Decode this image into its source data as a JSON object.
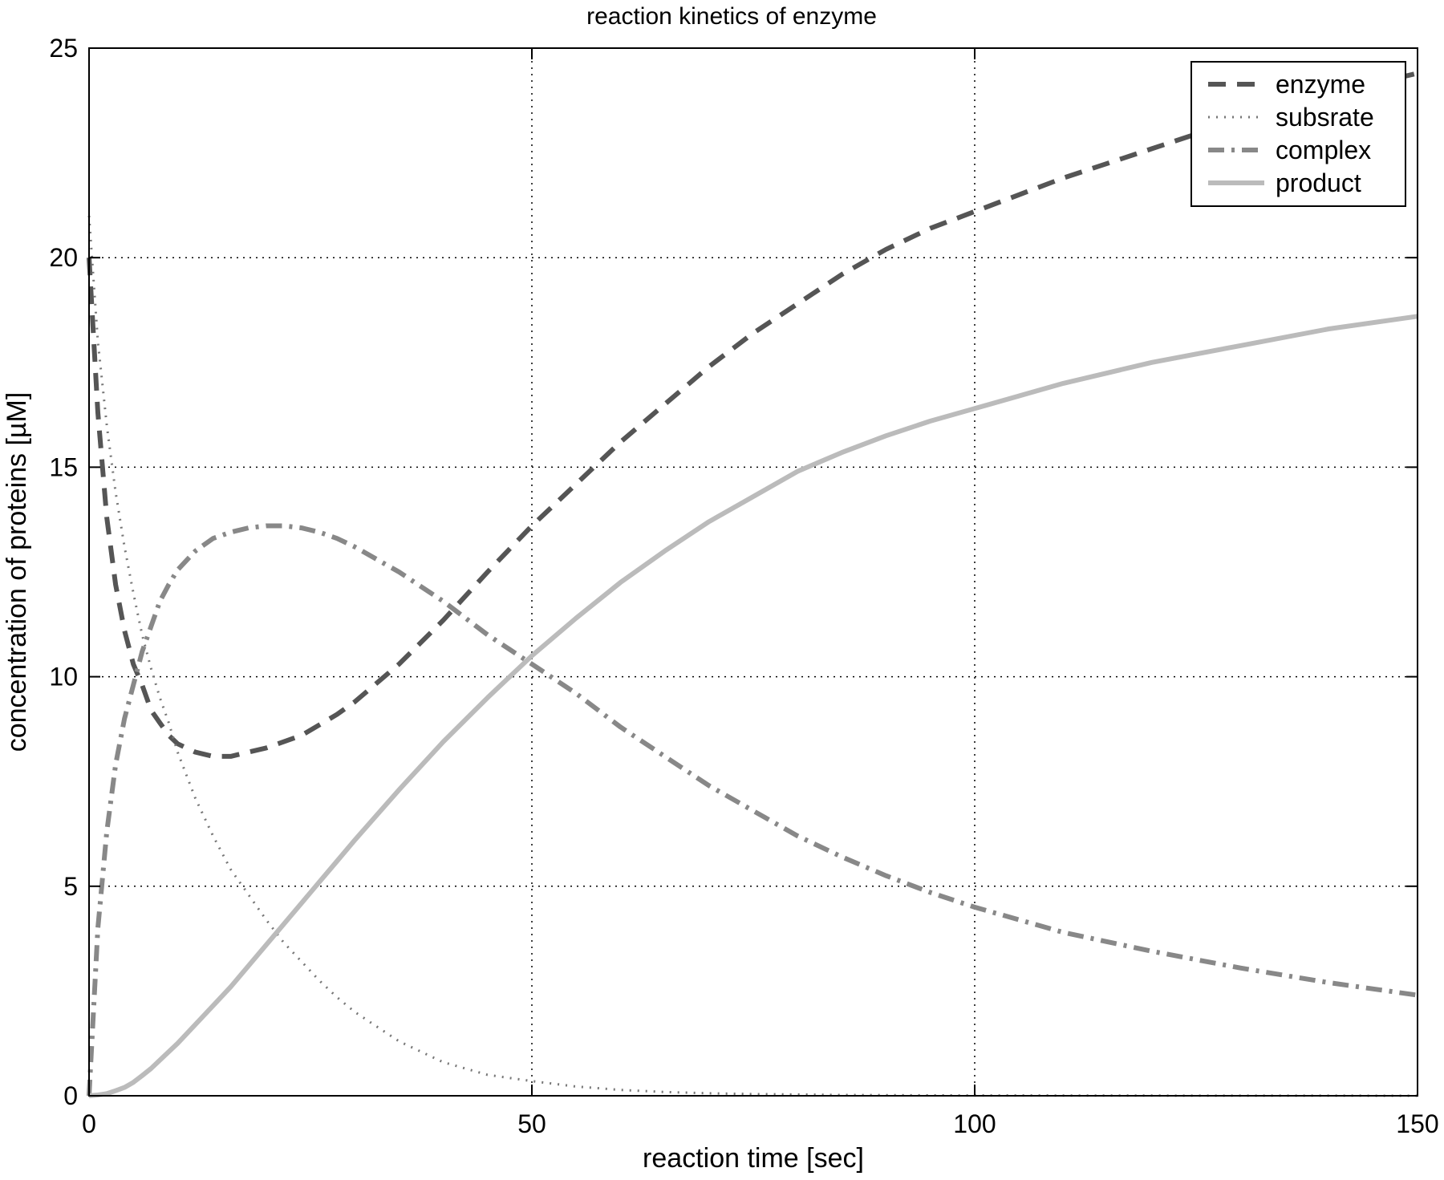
{
  "chart_data": {
    "type": "line",
    "title": "reaction kinetics of enzyme",
    "xlabel": "reaction time [sec]",
    "ylabel": "concentration of proteins [µM]",
    "xlim": [
      0,
      150
    ],
    "ylim": [
      0,
      25
    ],
    "xticks": [
      0,
      50,
      100,
      150
    ],
    "yticks": [
      0,
      5,
      10,
      15,
      20,
      25
    ],
    "xtick_labels": [
      "0",
      "50",
      "100",
      "150"
    ],
    "ytick_labels": [
      "0",
      "5",
      "10",
      "15",
      "20",
      "25"
    ],
    "grid": true,
    "legend_position": "top-right",
    "x": [
      0,
      1,
      2,
      3,
      4,
      5,
      6,
      7,
      8,
      9,
      10,
      12,
      14,
      16,
      18,
      20,
      22,
      24,
      26,
      28,
      30,
      35,
      40,
      45,
      50,
      55,
      60,
      65,
      70,
      75,
      80,
      85,
      90,
      95,
      100,
      110,
      120,
      130,
      140,
      150
    ],
    "series": [
      {
        "name": "enzyme",
        "style": "dashed",
        "color": "#555555",
        "values": [
          20.0,
          16.3,
          13.8,
          12.2,
          11.1,
          10.3,
          9.8,
          9.2,
          8.9,
          8.6,
          8.4,
          8.2,
          8.1,
          8.1,
          8.2,
          8.3,
          8.45,
          8.6,
          8.85,
          9.1,
          9.4,
          10.3,
          11.35,
          12.5,
          13.6,
          14.6,
          15.6,
          16.5,
          17.4,
          18.2,
          18.9,
          19.6,
          20.2,
          20.7,
          21.1,
          21.9,
          22.6,
          23.3,
          23.9,
          24.4
        ]
      },
      {
        "name": "subsrate",
        "style": "dotted",
        "color": "#777777",
        "values": [
          21.0,
          18.0,
          16.0,
          14.4,
          13.1,
          12.0,
          11.0,
          10.2,
          9.5,
          8.9,
          8.2,
          7.1,
          6.2,
          5.4,
          4.8,
          4.2,
          3.65,
          3.2,
          2.75,
          2.35,
          2.0,
          1.3,
          0.8,
          0.5,
          0.35,
          0.22,
          0.14,
          0.09,
          0.06,
          0.04,
          0.03,
          0.02,
          0.015,
          0.01,
          0.008,
          0.005,
          0.003,
          0.002,
          0.001,
          0.0
        ]
      },
      {
        "name": "complex",
        "style": "dashdot",
        "color": "#888888",
        "values": [
          0.0,
          4.0,
          6.3,
          7.9,
          9.0,
          9.8,
          10.6,
          11.2,
          11.8,
          12.2,
          12.55,
          13.0,
          13.3,
          13.45,
          13.55,
          13.6,
          13.6,
          13.55,
          13.45,
          13.3,
          13.1,
          12.5,
          11.8,
          11.0,
          10.3,
          9.6,
          8.8,
          8.1,
          7.4,
          6.8,
          6.2,
          5.7,
          5.25,
          4.85,
          4.5,
          3.9,
          3.45,
          3.05,
          2.7,
          2.4
        ]
      },
      {
        "name": "product",
        "style": "solid",
        "color": "#bbbbbb",
        "values": [
          0.0,
          0.02,
          0.05,
          0.12,
          0.2,
          0.32,
          0.48,
          0.65,
          0.85,
          1.05,
          1.25,
          1.7,
          2.15,
          2.6,
          3.1,
          3.6,
          4.1,
          4.6,
          5.1,
          5.6,
          6.1,
          7.3,
          8.45,
          9.5,
          10.5,
          11.4,
          12.25,
          13.0,
          13.7,
          14.3,
          14.9,
          15.35,
          15.75,
          16.1,
          16.4,
          17.0,
          17.5,
          17.9,
          18.3,
          18.6
        ]
      }
    ]
  }
}
